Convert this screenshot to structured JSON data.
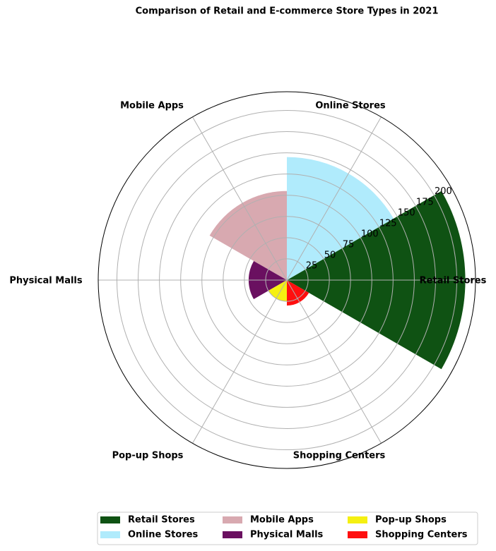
{
  "chart_data": {
    "type": "polar_bar",
    "title": "Comparison of Retail and E-commerce Store Types in 2021",
    "categories": [
      "Retail Stores",
      "Online Stores",
      "Mobile Apps",
      "Physical Malls",
      "Pop-up Shops",
      "Shopping Centers"
    ],
    "values": [
      210,
      145,
      105,
      45,
      25,
      30
    ],
    "colors": [
      "#0f5213",
      "#b0ebfc",
      "#d8a9b0",
      "#6a1060",
      "#f5f011",
      "#ff0f0f"
    ],
    "ylim": [
      0,
      222
    ],
    "yticks": [
      25,
      50,
      75,
      100,
      125,
      150,
      175,
      200
    ],
    "grid": true
  }
}
